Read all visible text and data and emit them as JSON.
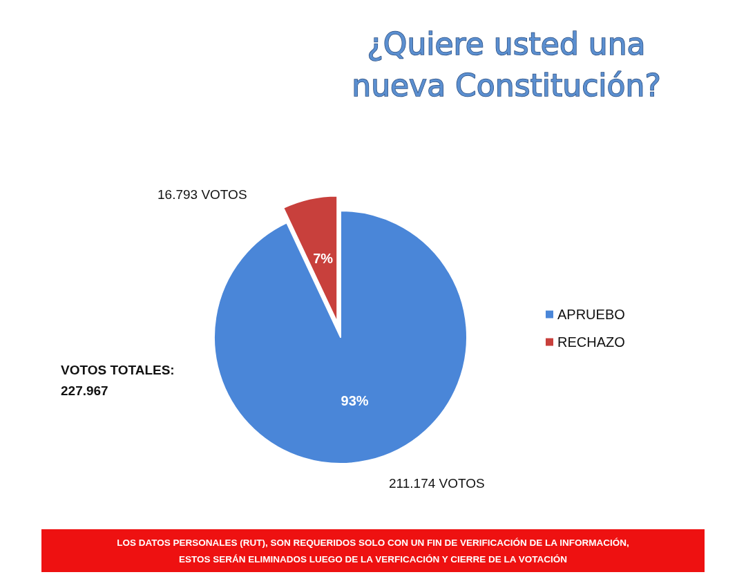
{
  "chart_data": {
    "type": "pie",
    "title": "¿Quiere usted una\nnueva Constitución?",
    "categories": [
      "APRUEBO",
      "RECHAZO"
    ],
    "values": [
      93,
      7
    ],
    "colors": [
      "#4a86d8",
      "#c8403c"
    ],
    "value_labels": [
      "93%",
      "7%"
    ],
    "legend": "right",
    "annotations": [
      "211.174 VOTOS",
      "16.793 VOTOS",
      "VOTOS TOTALES:\n227.967",
      "LOS DATOS PERSONALES (RUT), SON REQUERIDOS SOLO CON UN FIN DE VERIFICACIÓN DE LA INFORMACIÓN,\nESTOS SERÁN ELIMINADOS LUEGO DE LA VERFICACIÓN Y CIERRE DE LA VOTACIÓN"
    ]
  }
}
